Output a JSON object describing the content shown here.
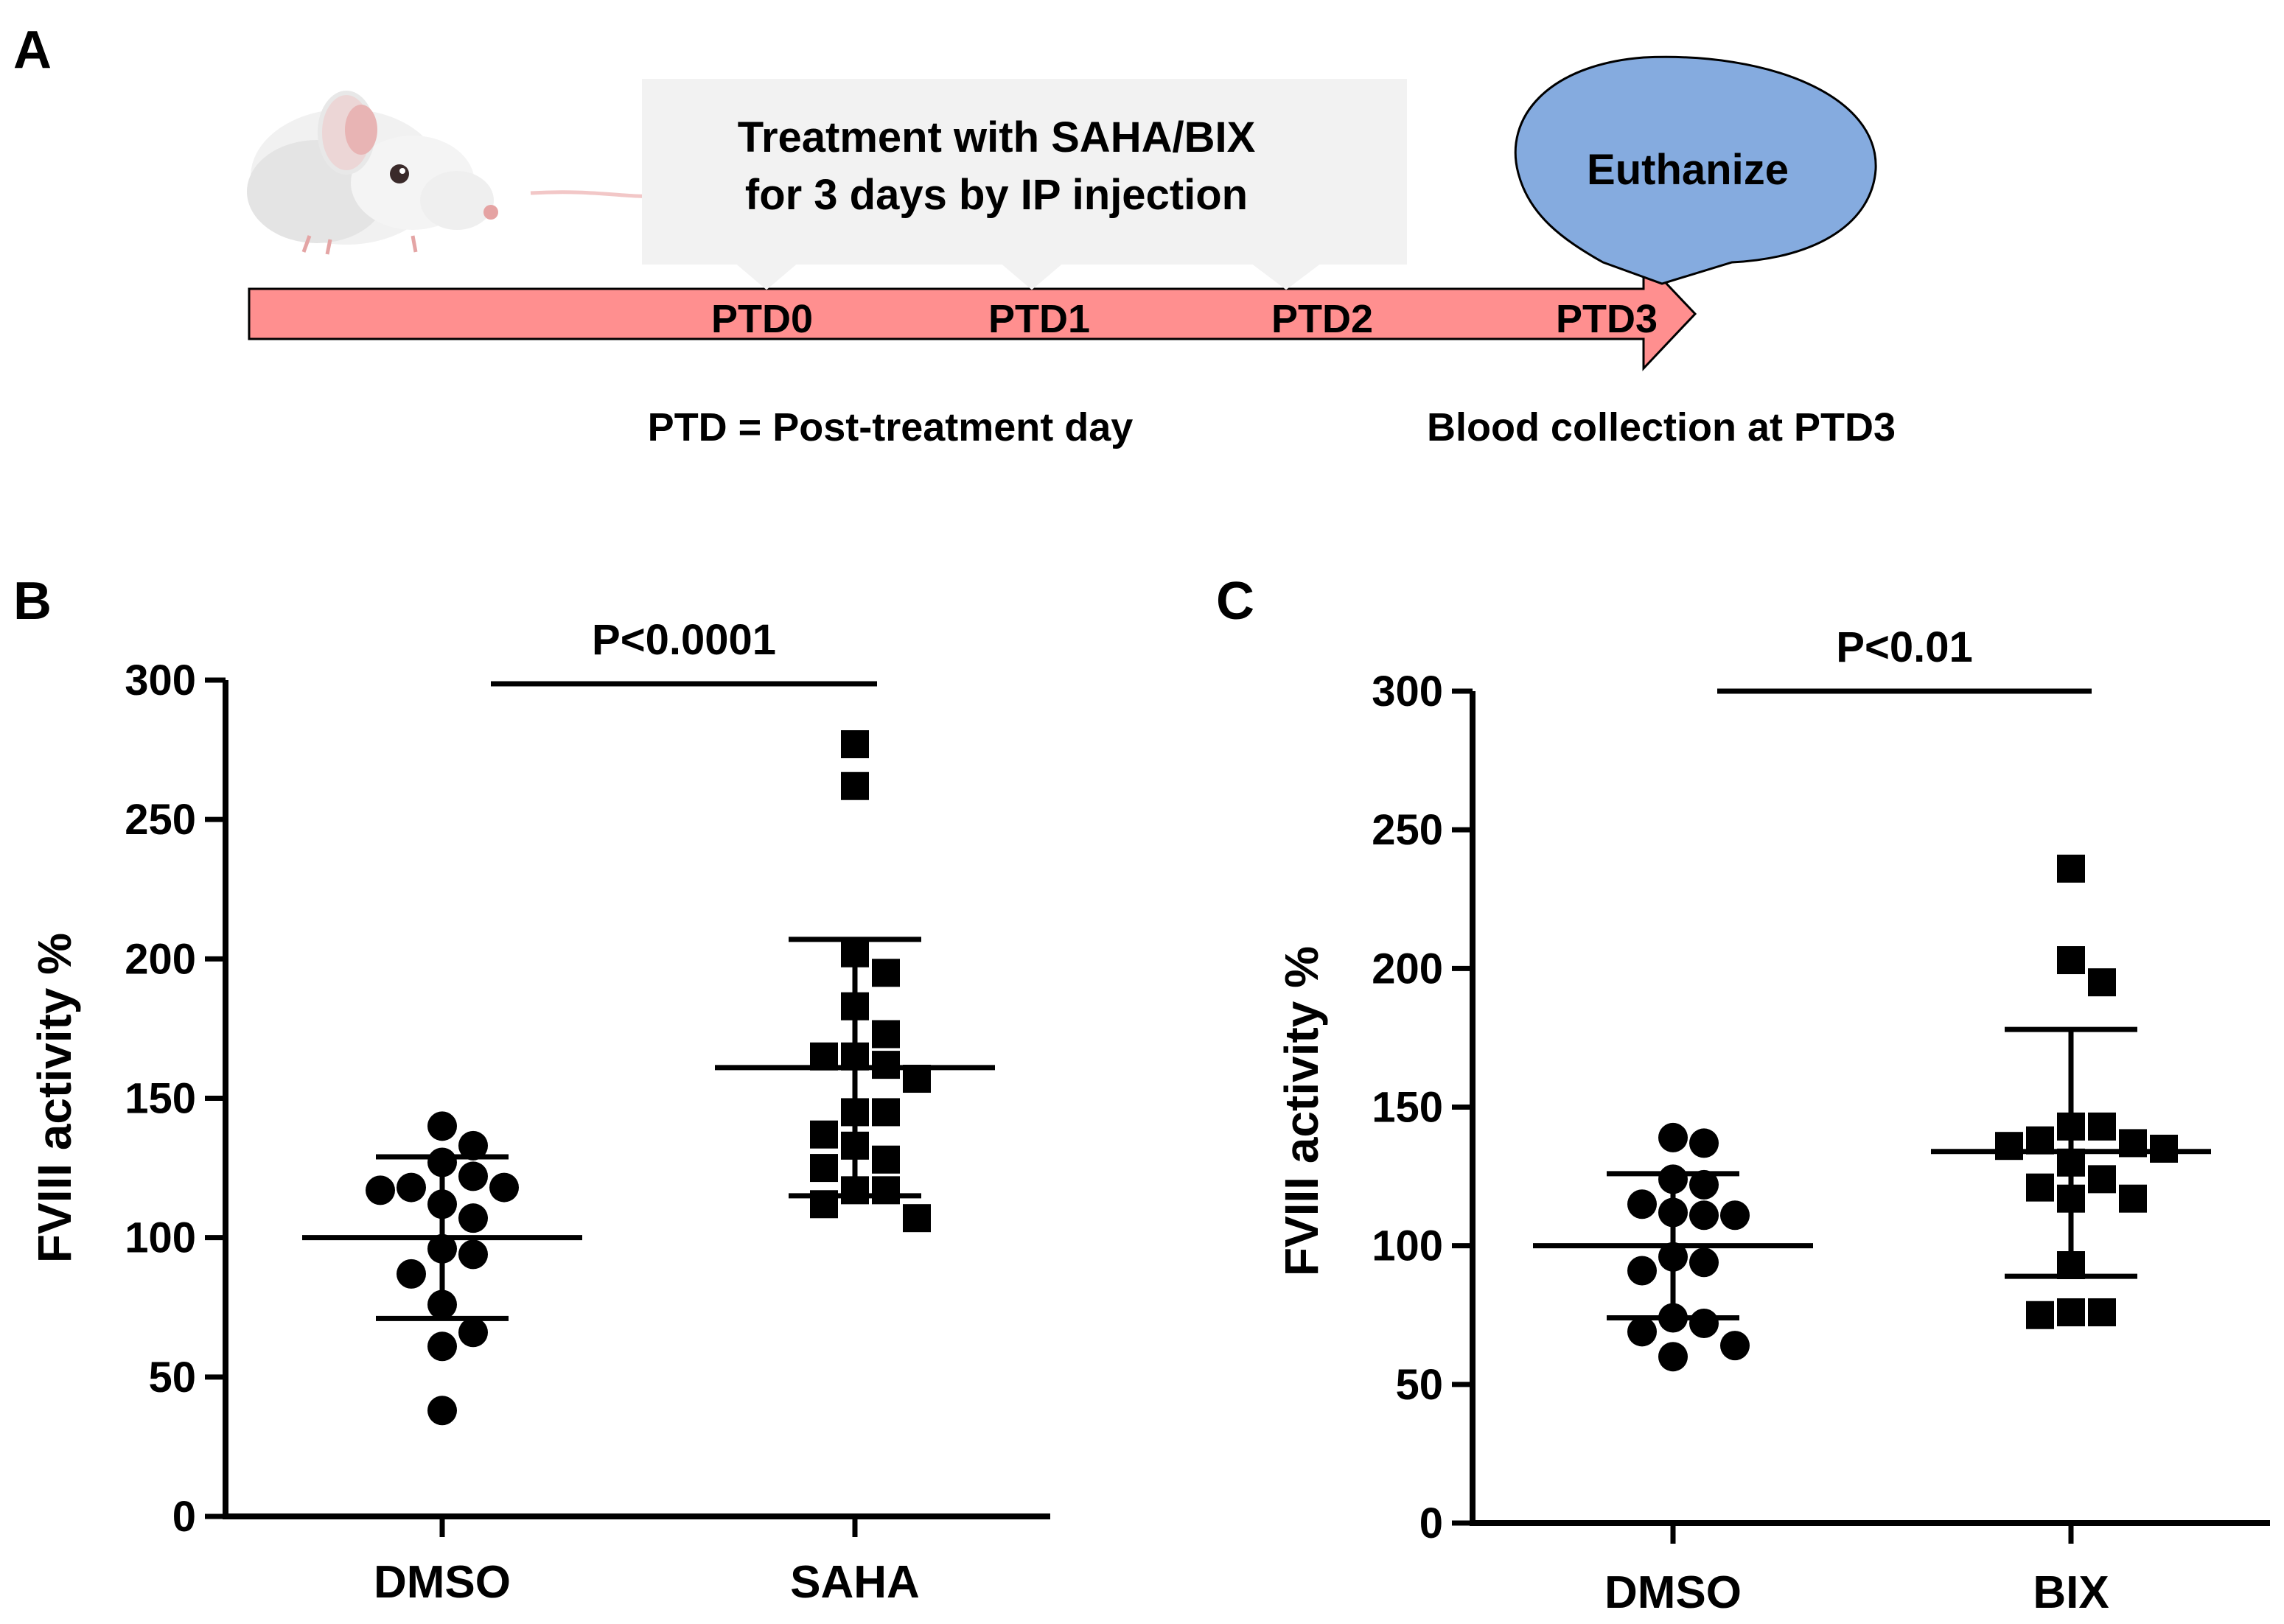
{
  "panel_a": {
    "letter": "A",
    "treatment_line1": "Treatment with SAHA/BIX",
    "treatment_line2": "for 3 days by IP injection",
    "euthanize": "Euthanize",
    "timeline_days": [
      "PTD0",
      "PTD1",
      "PTD2",
      "PTD3"
    ],
    "ptd_definition": "PTD = Post-treatment day",
    "blood_collection": "Blood collection at PTD3",
    "colors": {
      "arrow": "#ff8f8f",
      "bubble": "#85abdf",
      "callout": "#f2f2f2"
    },
    "icon": "mouse-illustration"
  },
  "chart_data": [
    {
      "panel": "B",
      "type": "scatter",
      "ylabel": "FVIII activity %",
      "ylim": [
        0,
        300
      ],
      "yticks": [
        "0",
        "50",
        "100",
        "150",
        "200",
        "250",
        "300"
      ],
      "categories": [
        "DMSO",
        "SAHA"
      ],
      "significance": "P<0.0001",
      "series": [
        {
          "group": "DMSO",
          "marker": "circle",
          "mean": 100,
          "sd_low": 71,
          "sd_high": 129,
          "points": [
            140,
            133,
            127,
            122,
            118,
            118,
            117,
            112,
            107,
            96,
            94,
            87,
            76,
            66,
            61,
            38
          ]
        },
        {
          "group": "SAHA",
          "marker": "square",
          "mean": 161,
          "sd_low": 115,
          "sd_high": 207,
          "points": [
            277,
            262,
            202,
            195,
            183,
            173,
            165,
            165,
            162,
            157,
            145,
            145,
            137,
            133,
            128,
            125,
            117,
            117,
            112,
            107
          ]
        }
      ]
    },
    {
      "panel": "C",
      "type": "scatter",
      "ylabel": "FVIII activity %",
      "ylim": [
        0,
        300
      ],
      "yticks": [
        "0",
        "50",
        "100",
        "150",
        "200",
        "250",
        "300"
      ],
      "categories": [
        "DMSO",
        "BIX"
      ],
      "significance": "P<0.01",
      "series": [
        {
          "group": "DMSO",
          "marker": "circle",
          "mean": 100,
          "sd_low": 74,
          "sd_high": 126,
          "points": [
            139,
            137,
            124,
            122,
            115,
            112,
            111,
            111,
            96,
            94,
            91,
            74,
            72,
            69,
            64,
            60
          ]
        },
        {
          "group": "BIX",
          "marker": "square",
          "mean": 134,
          "sd_low": 89,
          "sd_high": 178,
          "points": [
            236,
            203,
            195,
            143,
            143,
            138,
            137,
            136,
            135,
            130,
            124,
            121,
            117,
            117,
            93,
            76,
            76,
            75
          ]
        }
      ]
    }
  ]
}
